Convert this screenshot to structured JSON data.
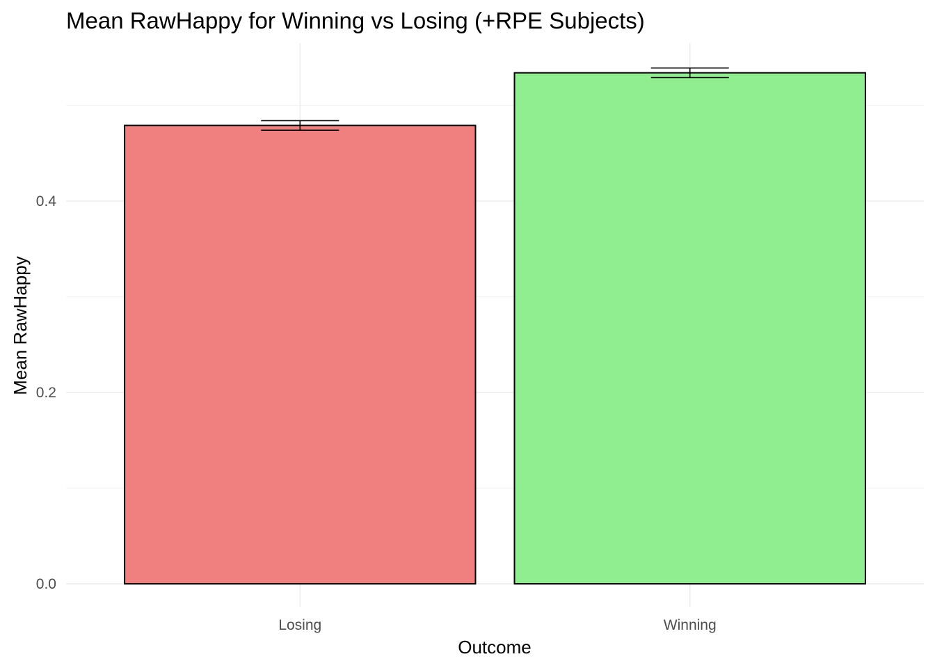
{
  "chart_data": {
    "type": "bar",
    "title": "Mean RawHappy for Winning vs Losing (+RPE Subjects)",
    "xlabel": "Outcome",
    "ylabel": "Mean RawHappy",
    "categories": [
      "Losing",
      "Winning"
    ],
    "values": [
      0.479,
      0.534
    ],
    "error_low": [
      0.474,
      0.529
    ],
    "error_high": [
      0.484,
      0.539
    ],
    "colors": [
      "#f08080",
      "#90ee90"
    ],
    "ylim": [
      -0.024,
      0.565
    ],
    "yticks": [
      0.0,
      0.2,
      0.4
    ],
    "ytick_labels": [
      "0.0",
      "0.2",
      "0.4"
    ],
    "grid": true,
    "legend": "none"
  }
}
